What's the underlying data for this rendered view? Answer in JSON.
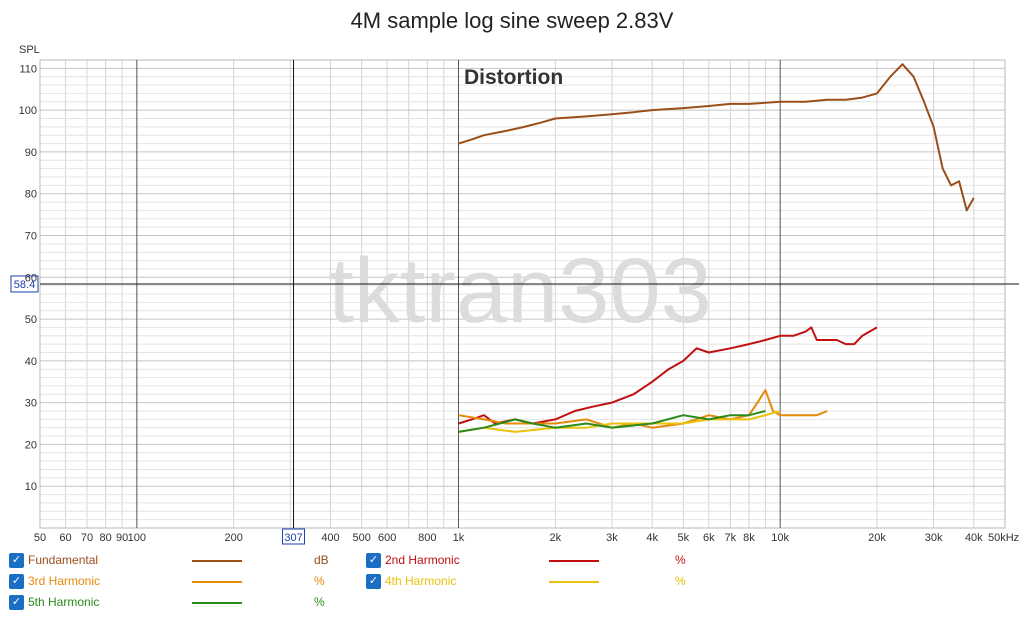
{
  "title": "4M sample log sine sweep 2.83V",
  "annotation": "Distortion",
  "watermark": "tktran303",
  "cursor": {
    "x_readout": "307",
    "y_readout": "58.4"
  },
  "legend": [
    {
      "id": "fund",
      "label": "Fundamental",
      "unit": "dB",
      "color": "#9a4f1b",
      "checked": true
    },
    {
      "id": "h2",
      "label": "2nd Harmonic",
      "unit": "%",
      "color": "#c01010",
      "checked": true
    },
    {
      "id": "h3",
      "label": "3rd Harmonic",
      "unit": "%",
      "color": "#e48a0c",
      "checked": true
    },
    {
      "id": "h4",
      "label": "4th Harmonic",
      "unit": "%",
      "color": "#e8c20c",
      "checked": true
    },
    {
      "id": "h5",
      "label": "5th Harmonic",
      "unit": "%",
      "color": "#2a8a1a",
      "checked": true
    }
  ],
  "chart_data": {
    "type": "line",
    "title": "4M sample log sine sweep 2.83V",
    "ylabel": "SPL",
    "xscale": "log",
    "xlim": [
      50,
      50000
    ],
    "ylim": [
      0,
      112
    ],
    "grid": true,
    "x_ticks": [
      {
        "v": 50,
        "label": "50"
      },
      {
        "v": 60,
        "label": "60"
      },
      {
        "v": 70,
        "label": "70"
      },
      {
        "v": 80,
        "label": "80"
      },
      {
        "v": 90,
        "label": "90"
      },
      {
        "v": 100,
        "label": "100"
      },
      {
        "v": 200,
        "label": "200"
      },
      {
        "v": 400,
        "label": "400"
      },
      {
        "v": 500,
        "label": "500"
      },
      {
        "v": 600,
        "label": "600"
      },
      {
        "v": 800,
        "label": "800"
      },
      {
        "v": 1000,
        "label": "1k"
      },
      {
        "v": 2000,
        "label": "2k"
      },
      {
        "v": 3000,
        "label": "3k"
      },
      {
        "v": 4000,
        "label": "4k"
      },
      {
        "v": 5000,
        "label": "5k"
      },
      {
        "v": 6000,
        "label": "6k"
      },
      {
        "v": 7000,
        "label": "7k"
      },
      {
        "v": 8000,
        "label": "8k"
      },
      {
        "v": 10000,
        "label": "10k"
      },
      {
        "v": 20000,
        "label": "20k"
      },
      {
        "v": 30000,
        "label": "30k"
      },
      {
        "v": 40000,
        "label": "40k"
      },
      {
        "v": 50000,
        "label": "50kHz"
      }
    ],
    "y_ticks": [
      10,
      20,
      30,
      40,
      50,
      60,
      70,
      80,
      90,
      100,
      110
    ],
    "series": [
      {
        "name": "Fundamental",
        "color": "#9a4f1b",
        "points": [
          [
            1000,
            92
          ],
          [
            1100,
            93
          ],
          [
            1200,
            94
          ],
          [
            1400,
            95
          ],
          [
            1600,
            96
          ],
          [
            1800,
            97
          ],
          [
            2000,
            98
          ],
          [
            2500,
            98.5
          ],
          [
            3000,
            99
          ],
          [
            3500,
            99.5
          ],
          [
            4000,
            100
          ],
          [
            5000,
            100.5
          ],
          [
            6000,
            101
          ],
          [
            7000,
            101.5
          ],
          [
            8000,
            101.5
          ],
          [
            10000,
            102
          ],
          [
            12000,
            102
          ],
          [
            14000,
            102.5
          ],
          [
            16000,
            102.5
          ],
          [
            18000,
            103
          ],
          [
            20000,
            104
          ],
          [
            22000,
            108
          ],
          [
            24000,
            111
          ],
          [
            26000,
            108
          ],
          [
            28000,
            102
          ],
          [
            30000,
            96
          ],
          [
            32000,
            86
          ],
          [
            34000,
            82
          ],
          [
            36000,
            83
          ],
          [
            38000,
            76
          ],
          [
            40000,
            79
          ]
        ]
      },
      {
        "name": "2nd Harmonic",
        "color": "#c01010",
        "points": [
          [
            1000,
            25
          ],
          [
            1100,
            26
          ],
          [
            1200,
            27
          ],
          [
            1300,
            25
          ],
          [
            1500,
            26
          ],
          [
            1700,
            25
          ],
          [
            2000,
            26
          ],
          [
            2300,
            28
          ],
          [
            2600,
            29
          ],
          [
            3000,
            30
          ],
          [
            3500,
            32
          ],
          [
            4000,
            35
          ],
          [
            4500,
            38
          ],
          [
            5000,
            40
          ],
          [
            5500,
            43
          ],
          [
            6000,
            42
          ],
          [
            7000,
            43
          ],
          [
            8000,
            44
          ],
          [
            9000,
            45
          ],
          [
            10000,
            46
          ],
          [
            11000,
            46
          ],
          [
            12000,
            47
          ],
          [
            12500,
            48
          ],
          [
            13000,
            45
          ],
          [
            14000,
            45
          ],
          [
            15000,
            45
          ],
          [
            16000,
            44
          ],
          [
            17000,
            44
          ],
          [
            18000,
            46
          ],
          [
            20000,
            48
          ]
        ]
      },
      {
        "name": "3rd Harmonic",
        "color": "#e48a0c",
        "points": [
          [
            1000,
            27
          ],
          [
            1200,
            26
          ],
          [
            1400,
            25
          ],
          [
            1600,
            25
          ],
          [
            2000,
            25
          ],
          [
            2500,
            26
          ],
          [
            3000,
            24
          ],
          [
            3500,
            25
          ],
          [
            4000,
            24
          ],
          [
            5000,
            25
          ],
          [
            6000,
            27
          ],
          [
            7000,
            26
          ],
          [
            8000,
            27
          ],
          [
            8500,
            30
          ],
          [
            9000,
            33
          ],
          [
            9500,
            28
          ],
          [
            10000,
            27
          ],
          [
            11000,
            27
          ],
          [
            12000,
            27
          ],
          [
            13000,
            27
          ],
          [
            14000,
            28
          ]
        ]
      },
      {
        "name": "4th Harmonic",
        "color": "#e8c20c",
        "points": [
          [
            1000,
            23
          ],
          [
            1200,
            24
          ],
          [
            1500,
            23
          ],
          [
            2000,
            24
          ],
          [
            2500,
            24
          ],
          [
            3000,
            25
          ],
          [
            4000,
            25
          ],
          [
            5000,
            25
          ],
          [
            6000,
            26
          ],
          [
            7000,
            26
          ],
          [
            8000,
            26
          ],
          [
            9000,
            27
          ],
          [
            10000,
            28
          ]
        ]
      },
      {
        "name": "5th Harmonic",
        "color": "#2a8a1a",
        "points": [
          [
            1000,
            23
          ],
          [
            1200,
            24
          ],
          [
            1500,
            26
          ],
          [
            1700,
            25
          ],
          [
            2000,
            24
          ],
          [
            2500,
            25
          ],
          [
            3000,
            24
          ],
          [
            4000,
            25
          ],
          [
            5000,
            27
          ],
          [
            6000,
            26
          ],
          [
            7000,
            27
          ],
          [
            8000,
            27
          ],
          [
            9000,
            28
          ]
        ]
      }
    ]
  }
}
